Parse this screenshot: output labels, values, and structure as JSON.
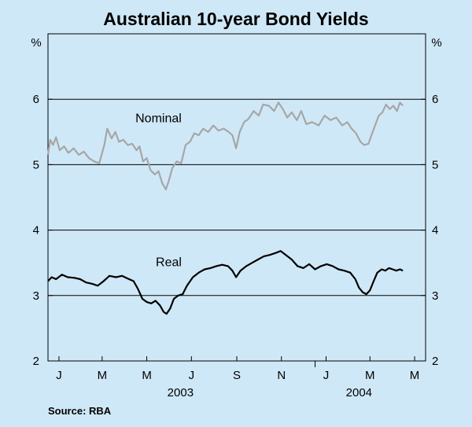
{
  "chart_data": {
    "type": "line",
    "title": "Australian 10-year Bond Yields",
    "source": "Source: RBA",
    "y_unit_left": "%",
    "y_unit_right": "%",
    "ylim": [
      2,
      7
    ],
    "y_ticks": [
      2,
      3,
      4,
      5,
      6
    ],
    "y_gridlines": [
      3,
      4,
      5,
      6
    ],
    "x_range": [
      "2003-01-01",
      "2004-05-31"
    ],
    "x_ticks": [
      {
        "label": "J",
        "date": "2003-01-16"
      },
      {
        "label": "M",
        "date": "2003-03-16"
      },
      {
        "label": "M",
        "date": "2003-05-16"
      },
      {
        "label": "J",
        "date": "2003-07-16"
      },
      {
        "label": "S",
        "date": "2003-09-16"
      },
      {
        "label": "N",
        "date": "2003-11-16"
      },
      {
        "label": "J",
        "date": "2004-01-16"
      },
      {
        "label": "M",
        "date": "2004-03-16"
      },
      {
        "label": "M",
        "date": "2004-05-16"
      }
    ],
    "x_year_labels": [
      {
        "label": "2003",
        "date": "2003-07-01"
      },
      {
        "label": "2004",
        "date": "2004-03-01"
      }
    ],
    "series": [
      {
        "name": "Nominal",
        "color": "#a6a6a6",
        "points": [
          [
            "2003-01-01",
            5.15
          ],
          [
            "2003-01-04",
            5.38
          ],
          [
            "2003-01-08",
            5.3
          ],
          [
            "2003-01-12",
            5.42
          ],
          [
            "2003-01-17",
            5.22
          ],
          [
            "2003-01-23",
            5.28
          ],
          [
            "2003-01-29",
            5.18
          ],
          [
            "2003-02-05",
            5.25
          ],
          [
            "2003-02-12",
            5.15
          ],
          [
            "2003-02-19",
            5.2
          ],
          [
            "2003-02-26",
            5.1
          ],
          [
            "2003-03-05",
            5.05
          ],
          [
            "2003-03-12",
            5.02
          ],
          [
            "2003-03-19",
            5.3
          ],
          [
            "2003-03-23",
            5.55
          ],
          [
            "2003-03-29",
            5.4
          ],
          [
            "2003-04-03",
            5.5
          ],
          [
            "2003-04-08",
            5.35
          ],
          [
            "2003-04-14",
            5.38
          ],
          [
            "2003-04-20",
            5.3
          ],
          [
            "2003-04-26",
            5.32
          ],
          [
            "2003-05-02",
            5.22
          ],
          [
            "2003-05-06",
            5.28
          ],
          [
            "2003-05-11",
            5.05
          ],
          [
            "2003-05-16",
            5.1
          ],
          [
            "2003-05-21",
            4.92
          ],
          [
            "2003-05-27",
            4.85
          ],
          [
            "2003-06-01",
            4.9
          ],
          [
            "2003-06-06",
            4.72
          ],
          [
            "2003-06-11",
            4.62
          ],
          [
            "2003-06-15",
            4.75
          ],
          [
            "2003-06-20",
            4.95
          ],
          [
            "2003-06-26",
            5.05
          ],
          [
            "2003-07-02",
            5.02
          ],
          [
            "2003-07-08",
            5.3
          ],
          [
            "2003-07-14",
            5.35
          ],
          [
            "2003-07-20",
            5.48
          ],
          [
            "2003-07-26",
            5.45
          ],
          [
            "2003-08-01",
            5.55
          ],
          [
            "2003-08-08",
            5.5
          ],
          [
            "2003-08-15",
            5.6
          ],
          [
            "2003-08-22",
            5.52
          ],
          [
            "2003-08-29",
            5.55
          ],
          [
            "2003-09-05",
            5.5
          ],
          [
            "2003-09-10",
            5.45
          ],
          [
            "2003-09-15",
            5.25
          ],
          [
            "2003-09-20",
            5.5
          ],
          [
            "2003-09-26",
            5.65
          ],
          [
            "2003-10-02",
            5.7
          ],
          [
            "2003-10-09",
            5.82
          ],
          [
            "2003-10-16",
            5.75
          ],
          [
            "2003-10-22",
            5.92
          ],
          [
            "2003-10-30",
            5.9
          ],
          [
            "2003-11-06",
            5.82
          ],
          [
            "2003-11-12",
            5.95
          ],
          [
            "2003-11-18",
            5.85
          ],
          [
            "2003-11-24",
            5.72
          ],
          [
            "2003-11-30",
            5.8
          ],
          [
            "2003-12-07",
            5.68
          ],
          [
            "2003-12-13",
            5.82
          ],
          [
            "2003-12-20",
            5.62
          ],
          [
            "2003-12-28",
            5.65
          ],
          [
            "2004-01-06",
            5.6
          ],
          [
            "2004-01-14",
            5.75
          ],
          [
            "2004-01-22",
            5.68
          ],
          [
            "2004-01-30",
            5.72
          ],
          [
            "2004-02-07",
            5.6
          ],
          [
            "2004-02-14",
            5.65
          ],
          [
            "2004-02-20",
            5.55
          ],
          [
            "2004-02-26",
            5.48
          ],
          [
            "2004-03-03",
            5.35
          ],
          [
            "2004-03-08",
            5.3
          ],
          [
            "2004-03-14",
            5.32
          ],
          [
            "2004-03-18",
            5.45
          ],
          [
            "2004-03-23",
            5.6
          ],
          [
            "2004-03-28",
            5.75
          ],
          [
            "2004-04-02",
            5.8
          ],
          [
            "2004-04-07",
            5.92
          ],
          [
            "2004-04-12",
            5.85
          ],
          [
            "2004-04-17",
            5.9
          ],
          [
            "2004-04-22",
            5.82
          ],
          [
            "2004-04-26",
            5.95
          ],
          [
            "2004-04-30",
            5.9
          ]
        ]
      },
      {
        "name": "Real",
        "color": "#000000",
        "points": [
          [
            "2003-01-01",
            3.22
          ],
          [
            "2003-01-06",
            3.28
          ],
          [
            "2003-01-12",
            3.25
          ],
          [
            "2003-01-20",
            3.32
          ],
          [
            "2003-01-28",
            3.28
          ],
          [
            "2003-02-06",
            3.27
          ],
          [
            "2003-02-14",
            3.25
          ],
          [
            "2003-02-22",
            3.2
          ],
          [
            "2003-03-02",
            3.18
          ],
          [
            "2003-03-10",
            3.15
          ],
          [
            "2003-03-18",
            3.22
          ],
          [
            "2003-03-26",
            3.3
          ],
          [
            "2003-04-04",
            3.28
          ],
          [
            "2003-04-12",
            3.3
          ],
          [
            "2003-04-20",
            3.26
          ],
          [
            "2003-04-28",
            3.22
          ],
          [
            "2003-05-04",
            3.1
          ],
          [
            "2003-05-10",
            2.95
          ],
          [
            "2003-05-16",
            2.9
          ],
          [
            "2003-05-22",
            2.88
          ],
          [
            "2003-05-28",
            2.92
          ],
          [
            "2003-06-03",
            2.85
          ],
          [
            "2003-06-08",
            2.75
          ],
          [
            "2003-06-12",
            2.72
          ],
          [
            "2003-06-17",
            2.8
          ],
          [
            "2003-06-22",
            2.95
          ],
          [
            "2003-06-28",
            3.0
          ],
          [
            "2003-07-04",
            3.02
          ],
          [
            "2003-07-10",
            3.15
          ],
          [
            "2003-07-18",
            3.28
          ],
          [
            "2003-07-26",
            3.35
          ],
          [
            "2003-08-03",
            3.4
          ],
          [
            "2003-08-11",
            3.42
          ],
          [
            "2003-08-19",
            3.45
          ],
          [
            "2003-08-27",
            3.47
          ],
          [
            "2003-09-04",
            3.45
          ],
          [
            "2003-09-10",
            3.38
          ],
          [
            "2003-09-15",
            3.28
          ],
          [
            "2003-09-21",
            3.38
          ],
          [
            "2003-09-29",
            3.45
          ],
          [
            "2003-10-07",
            3.5
          ],
          [
            "2003-10-15",
            3.55
          ],
          [
            "2003-10-23",
            3.6
          ],
          [
            "2003-10-31",
            3.62
          ],
          [
            "2003-11-08",
            3.65
          ],
          [
            "2003-11-15",
            3.68
          ],
          [
            "2003-11-22",
            3.62
          ],
          [
            "2003-11-30",
            3.55
          ],
          [
            "2003-12-08",
            3.45
          ],
          [
            "2003-12-16",
            3.42
          ],
          [
            "2003-12-24",
            3.48
          ],
          [
            "2004-01-01",
            3.4
          ],
          [
            "2004-01-09",
            3.45
          ],
          [
            "2004-01-17",
            3.48
          ],
          [
            "2004-01-25",
            3.45
          ],
          [
            "2004-02-02",
            3.4
          ],
          [
            "2004-02-10",
            3.38
          ],
          [
            "2004-02-18",
            3.35
          ],
          [
            "2004-02-25",
            3.25
          ],
          [
            "2004-03-01",
            3.12
          ],
          [
            "2004-03-06",
            3.05
          ],
          [
            "2004-03-11",
            3.02
          ],
          [
            "2004-03-16",
            3.08
          ],
          [
            "2004-03-21",
            3.22
          ],
          [
            "2004-03-26",
            3.35
          ],
          [
            "2004-04-01",
            3.4
          ],
          [
            "2004-04-06",
            3.38
          ],
          [
            "2004-04-11",
            3.42
          ],
          [
            "2004-04-16",
            3.4
          ],
          [
            "2004-04-21",
            3.38
          ],
          [
            "2004-04-26",
            3.4
          ],
          [
            "2004-04-30",
            3.38
          ]
        ]
      }
    ],
    "annotations": [
      {
        "text": "Nominal",
        "series": "Nominal",
        "date": "2003-06-01",
        "y": 5.65
      },
      {
        "text": "Real",
        "series": "Real",
        "date": "2003-06-15",
        "y": 3.45
      }
    ]
  }
}
